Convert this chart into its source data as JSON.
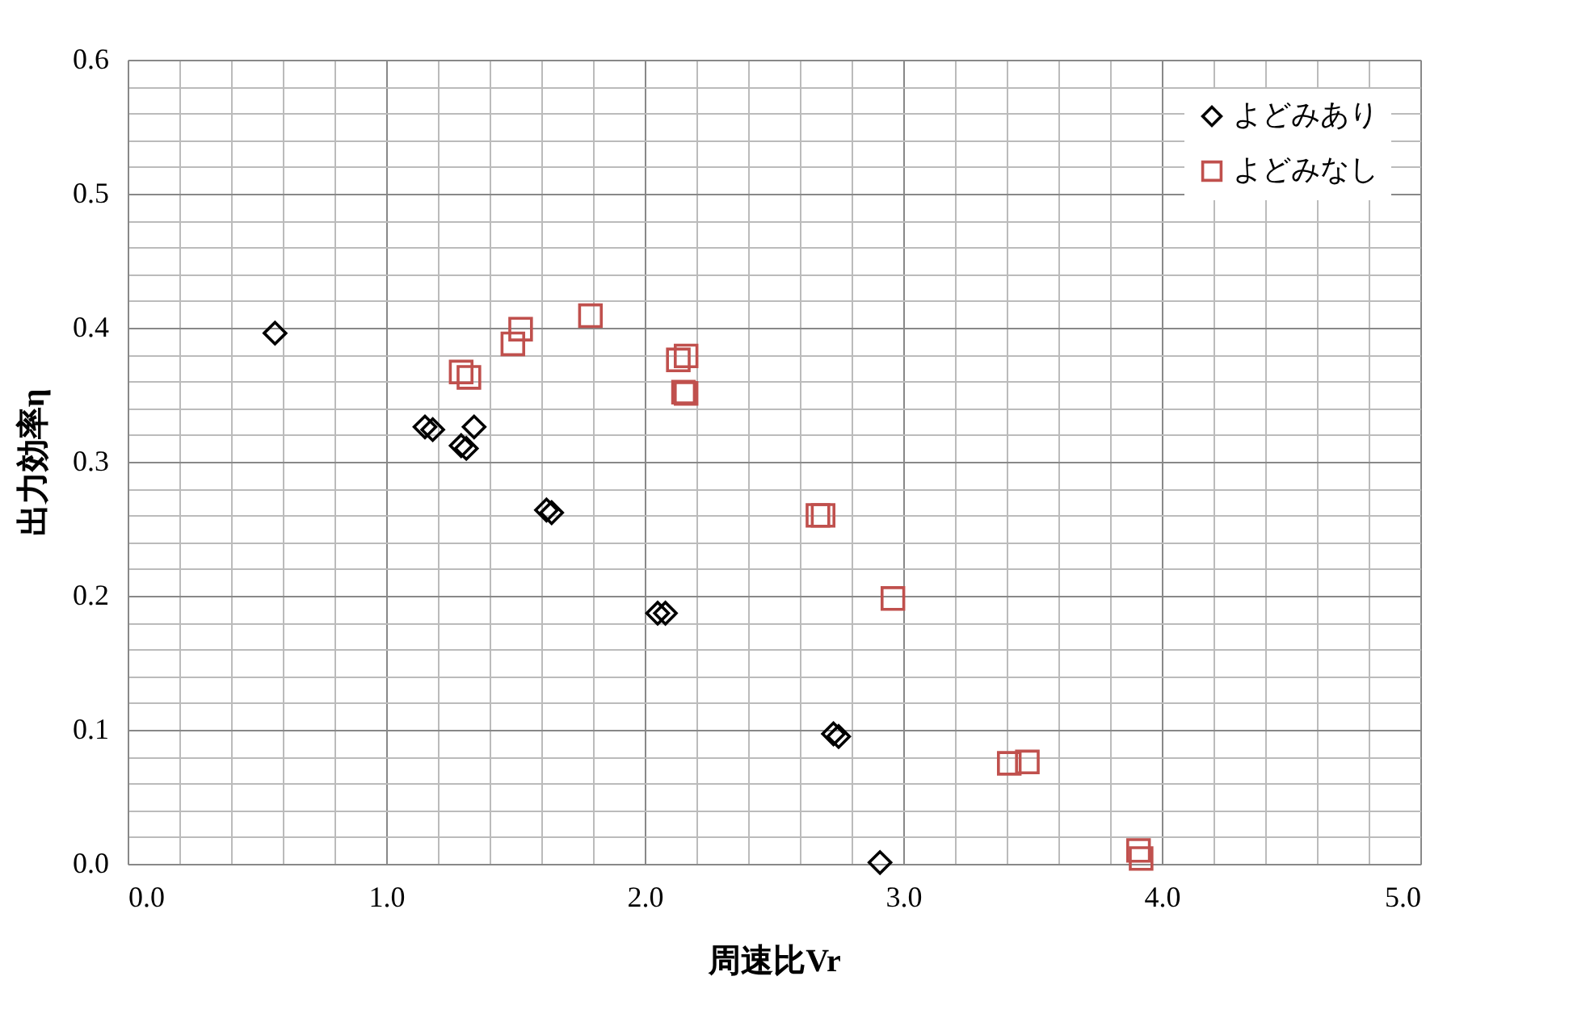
{
  "chart_data": {
    "type": "scatter",
    "xlabel": "周速比Vr",
    "ylabel": "出力効率η",
    "series": [
      {
        "name": "よどみあり",
        "color": "#000000",
        "marker": "diamond",
        "x": [
          0.57,
          1.15,
          1.18,
          1.34,
          1.29,
          1.31,
          1.62,
          1.64,
          2.05,
          2.08,
          2.73,
          2.75,
          2.91
        ],
        "values": [
          0.396,
          0.326,
          0.324,
          0.326,
          0.312,
          0.31,
          0.264,
          0.262,
          0.187,
          0.187,
          0.097,
          0.095,
          0.001
        ]
      },
      {
        "name": "よどみなし",
        "color": "#c0504d",
        "marker": "square",
        "x": [
          1.29,
          1.32,
          1.49,
          1.52,
          1.79,
          2.13,
          2.16,
          2.15,
          2.16,
          2.67,
          2.69,
          2.96,
          3.41,
          3.48,
          3.91,
          3.92
        ],
        "values": [
          0.367,
          0.363,
          0.388,
          0.399,
          0.409,
          0.376,
          0.379,
          0.352,
          0.351,
          0.26,
          0.26,
          0.198,
          0.075,
          0.076,
          0.01,
          0.004
        ]
      }
    ],
    "xlim": [
      0,
      5
    ],
    "ylim": [
      0,
      0.6
    ],
    "xticks": [
      {
        "value": 0,
        "label": "0.0"
      },
      {
        "value": 0.2,
        "label": null
      },
      {
        "value": 0.4,
        "label": null
      },
      {
        "value": 0.6,
        "label": null
      },
      {
        "value": 0.8,
        "label": null
      },
      {
        "value": 1,
        "label": "1.0"
      },
      {
        "value": 1.2,
        "label": null
      },
      {
        "value": 1.4,
        "label": null
      },
      {
        "value": 1.6,
        "label": null
      },
      {
        "value": 1.8,
        "label": null
      },
      {
        "value": 2,
        "label": "2.0"
      },
      {
        "value": 2.2,
        "label": null
      },
      {
        "value": 2.4,
        "label": null
      },
      {
        "value": 2.6,
        "label": null
      },
      {
        "value": 2.8,
        "label": null
      },
      {
        "value": 3,
        "label": "3.0"
      },
      {
        "value": 3.2,
        "label": null
      },
      {
        "value": 3.4,
        "label": null
      },
      {
        "value": 3.6,
        "label": null
      },
      {
        "value": 3.8,
        "label": null
      },
      {
        "value": 4,
        "label": "4.0"
      },
      {
        "value": 4.2,
        "label": null
      },
      {
        "value": 4.4,
        "label": null
      },
      {
        "value": 4.6,
        "label": null
      },
      {
        "value": 4.8,
        "label": null
      },
      {
        "value": 5,
        "label": "5.0"
      }
    ],
    "yticks": [
      {
        "value": 0,
        "label": "0.0"
      },
      {
        "value": 0.02,
        "label": null
      },
      {
        "value": 0.04,
        "label": null
      },
      {
        "value": 0.06,
        "label": null
      },
      {
        "value": 0.08,
        "label": null
      },
      0.1,
      {
        "value": 0.12,
        "label": null
      },
      {
        "value": 0.14,
        "label": null
      },
      {
        "value": 0.16,
        "label": null
      },
      {
        "value": 0.18,
        "label": null
      },
      0.2,
      {
        "value": 0.22,
        "label": null
      },
      {
        "value": 0.24,
        "label": null
      },
      {
        "value": 0.26,
        "label": null
      },
      {
        "value": 0.28,
        "label": null
      },
      0.3,
      {
        "value": 0.32,
        "label": null
      },
      {
        "value": 0.34,
        "label": null
      },
      {
        "value": 0.36,
        "label": null
      },
      {
        "value": 0.38,
        "label": null
      },
      0.4,
      {
        "value": 0.42,
        "label": null
      },
      {
        "value": 0.44,
        "label": null
      },
      {
        "value": 0.46,
        "label": null
      },
      {
        "value": 0.48,
        "label": null
      },
      0.5,
      {
        "value": 0.52,
        "label": null
      },
      {
        "value": 0.54,
        "label": null
      },
      {
        "value": 0.56,
        "label": null
      },
      {
        "value": 0.58,
        "label": null
      },
      0.6
    ],
    "grid": true,
    "legend": "top right"
  }
}
